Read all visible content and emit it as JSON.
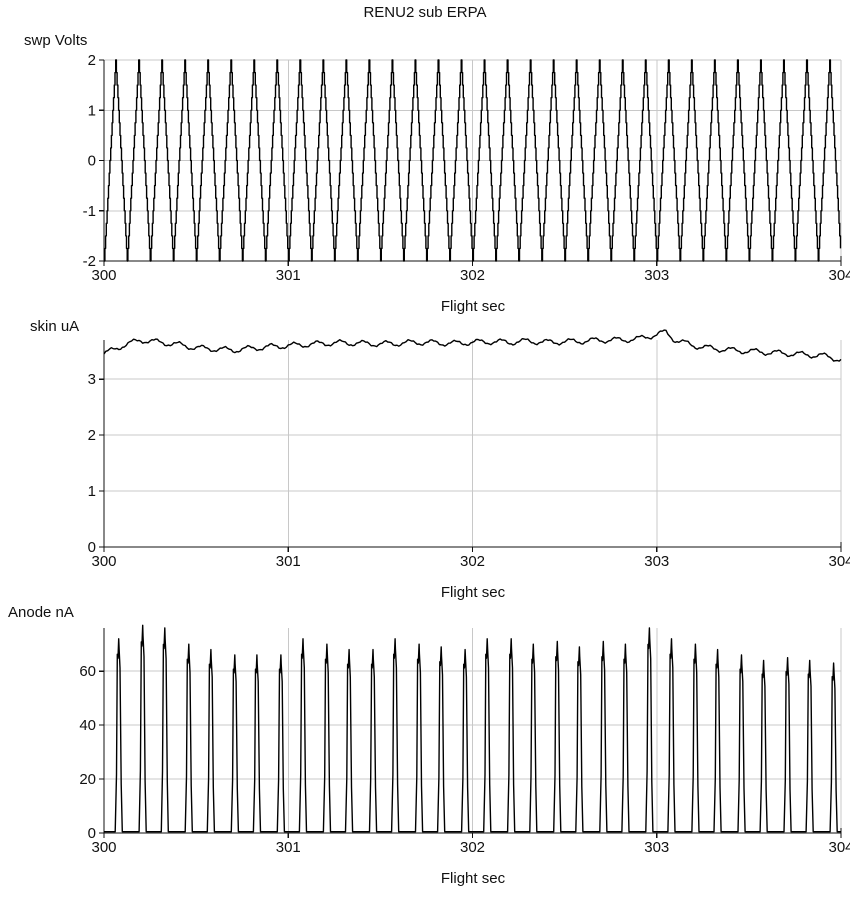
{
  "figure_title": "RENU2 sub ERPA",
  "chart_data": [
    {
      "type": "line",
      "id": "sweep",
      "ylabel": "swp Volts",
      "xlabel": "Flight sec",
      "xlim": [
        300,
        304
      ],
      "ylim": [
        -2,
        2
      ],
      "xticks": [
        300,
        301,
        302,
        303,
        304
      ],
      "yticks": [
        -2,
        -1,
        0,
        1,
        2
      ],
      "grid": true,
      "series": [
        {
          "x_start": 300.0,
          "x_end": 304.0,
          "sweep_period_sec": 0.125,
          "sweep_steps": 16,
          "range": [
            -2,
            2
          ],
          "shape": "stepped triangle"
        }
      ]
    },
    {
      "type": "line",
      "id": "skin",
      "ylabel": "skin  uA",
      "xlabel": "Flight sec",
      "xlim": [
        300,
        304
      ],
      "ylim": [
        0,
        3.7
      ],
      "xticks": [
        300,
        301,
        302,
        303,
        304
      ],
      "yticks": [
        0,
        1,
        2,
        3
      ],
      "grid": true,
      "series": [
        {
          "x": [
            300.0,
            300.1,
            300.2,
            300.3,
            300.4,
            300.5,
            300.6,
            300.7,
            300.8,
            300.9,
            301.0,
            301.1,
            301.2,
            301.3,
            301.4,
            301.5,
            301.6,
            301.7,
            301.8,
            301.9,
            302.0,
            302.1,
            302.2,
            302.3,
            302.4,
            302.5,
            302.6,
            302.7,
            302.8,
            302.9,
            303.0,
            303.05,
            303.1,
            303.2,
            303.3,
            303.4,
            303.5,
            303.6,
            303.7,
            303.8,
            303.9,
            304.0
          ],
          "y": [
            3.45,
            3.6,
            3.7,
            3.66,
            3.62,
            3.56,
            3.54,
            3.52,
            3.55,
            3.58,
            3.6,
            3.62,
            3.64,
            3.65,
            3.64,
            3.63,
            3.64,
            3.66,
            3.65,
            3.64,
            3.66,
            3.67,
            3.66,
            3.68,
            3.66,
            3.67,
            3.68,
            3.7,
            3.7,
            3.72,
            3.8,
            3.84,
            3.7,
            3.6,
            3.55,
            3.52,
            3.5,
            3.48,
            3.46,
            3.44,
            3.42,
            3.35
          ]
        }
      ]
    },
    {
      "type": "line",
      "id": "anode",
      "ylabel": "Anode  nA",
      "xlabel": "Flight sec",
      "xlim": [
        300,
        304
      ],
      "ylim": [
        0,
        76
      ],
      "xticks": [
        300,
        301,
        302,
        303,
        304
      ],
      "yticks": [
        0,
        20,
        40,
        60
      ],
      "grid": true,
      "series": [
        {
          "baseline": 0.5,
          "pulse_width_sec": 0.035,
          "peak_x": [
            300.08,
            300.21,
            300.33,
            300.46,
            300.58,
            300.71,
            300.83,
            300.96,
            301.08,
            301.21,
            301.33,
            301.46,
            301.58,
            301.71,
            301.83,
            301.96,
            302.08,
            302.21,
            302.33,
            302.46,
            302.58,
            302.71,
            302.83,
            302.96,
            303.08,
            303.21,
            303.33,
            303.46,
            303.58,
            303.71,
            303.83,
            303.96
          ],
          "peak_y": [
            72,
            77,
            76,
            70,
            68,
            66,
            66,
            66,
            72,
            70,
            68,
            68,
            72,
            70,
            69,
            68,
            72,
            72,
            70,
            71,
            69,
            71,
            70,
            76,
            72,
            70,
            68,
            66,
            64,
            65,
            64,
            63
          ]
        }
      ]
    }
  ]
}
